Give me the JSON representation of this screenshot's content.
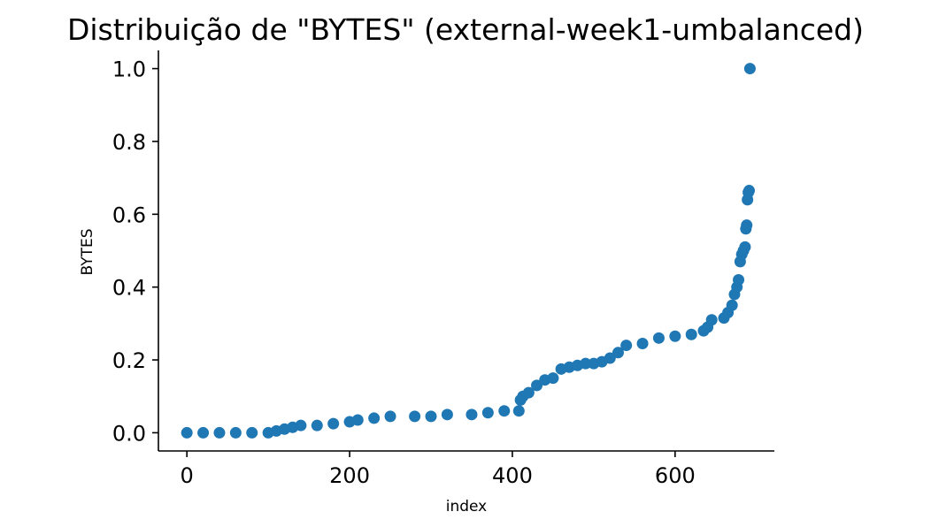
{
  "chart_data": {
    "type": "scatter",
    "title": "Distribuição de \"BYTES\" (external-week1-umbalanced)",
    "xlabel": "index",
    "ylabel": "BYTES",
    "xlim": [
      -35,
      722
    ],
    "ylim": [
      -0.05,
      1.05
    ],
    "xticks": [
      0,
      200,
      400,
      600
    ],
    "yticks": [
      0.0,
      0.2,
      0.4,
      0.6,
      0.8,
      1.0
    ],
    "xtick_labels": [
      "0",
      "200",
      "400",
      "600"
    ],
    "ytick_labels": [
      "0.0",
      "0.2",
      "0.4",
      "0.6",
      "0.8",
      "1.0"
    ],
    "grid": false,
    "marker_color": "#1f77b4",
    "series": [
      {
        "points": [
          [
            0,
            0.0
          ],
          [
            20,
            0.0
          ],
          [
            40,
            0.0
          ],
          [
            60,
            0.0
          ],
          [
            80,
            0.0
          ],
          [
            100,
            0.0
          ],
          [
            110,
            0.005
          ],
          [
            120,
            0.01
          ],
          [
            130,
            0.015
          ],
          [
            140,
            0.02
          ],
          [
            160,
            0.02
          ],
          [
            180,
            0.025
          ],
          [
            200,
            0.03
          ],
          [
            210,
            0.035
          ],
          [
            230,
            0.04
          ],
          [
            250,
            0.045
          ],
          [
            280,
            0.045
          ],
          [
            300,
            0.045
          ],
          [
            320,
            0.05
          ],
          [
            350,
            0.05
          ],
          [
            370,
            0.055
          ],
          [
            390,
            0.06
          ],
          [
            408,
            0.06
          ],
          [
            410,
            0.09
          ],
          [
            413,
            0.1
          ],
          [
            420,
            0.11
          ],
          [
            430,
            0.13
          ],
          [
            440,
            0.145
          ],
          [
            450,
            0.15
          ],
          [
            460,
            0.175
          ],
          [
            470,
            0.18
          ],
          [
            480,
            0.185
          ],
          [
            490,
            0.19
          ],
          [
            500,
            0.19
          ],
          [
            510,
            0.195
          ],
          [
            520,
            0.205
          ],
          [
            530,
            0.22
          ],
          [
            540,
            0.24
          ],
          [
            560,
            0.245
          ],
          [
            580,
            0.26
          ],
          [
            600,
            0.265
          ],
          [
            620,
            0.27
          ],
          [
            635,
            0.28
          ],
          [
            640,
            0.29
          ],
          [
            645,
            0.31
          ],
          [
            660,
            0.315
          ],
          [
            665,
            0.33
          ],
          [
            670,
            0.35
          ],
          [
            673,
            0.38
          ],
          [
            676,
            0.4
          ],
          [
            678,
            0.42
          ],
          [
            680,
            0.47
          ],
          [
            682,
            0.49
          ],
          [
            684,
            0.5
          ],
          [
            686,
            0.51
          ],
          [
            687,
            0.56
          ],
          [
            688,
            0.57
          ],
          [
            689,
            0.64
          ],
          [
            690,
            0.66
          ],
          [
            691,
            0.665
          ],
          [
            692,
            1.0
          ]
        ]
      }
    ]
  }
}
